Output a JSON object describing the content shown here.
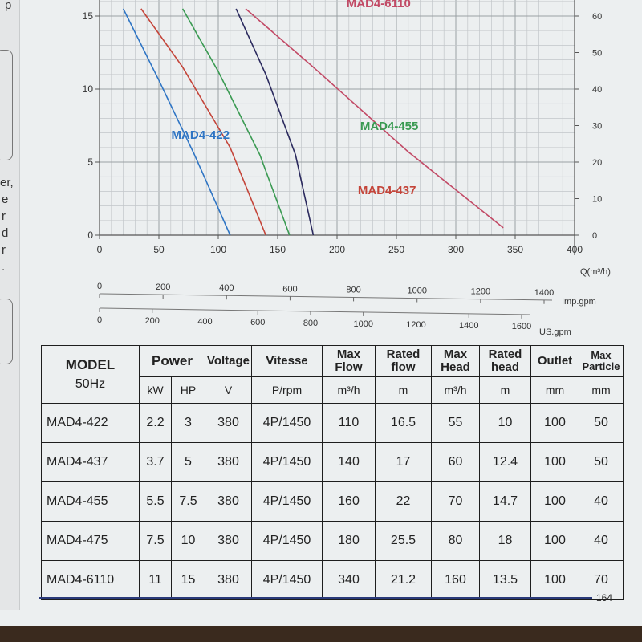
{
  "page": {
    "number": "164"
  },
  "left_page_fragments": [
    "p",
    "er,",
    "e",
    "r",
    "d",
    "r",
    "."
  ],
  "chart_data": {
    "type": "line",
    "title": "",
    "xlabel": "Q(m³/h)",
    "ylabel": "",
    "x_axis": {
      "min": 0,
      "max": 400,
      "ticks": [
        0,
        50,
        100,
        150,
        200,
        250,
        300,
        350,
        400
      ],
      "unit": "Q(m³/h)"
    },
    "y_axis_left": {
      "min": 0,
      "max": 15,
      "ticks": [
        0,
        5,
        10,
        15
      ]
    },
    "y_axis_right": {
      "min": 0,
      "max": 60,
      "ticks": [
        0,
        10,
        20,
        30,
        40,
        50,
        60
      ]
    },
    "secondary_x_axes": [
      {
        "unit": "Imp.gpm",
        "min": 0,
        "max": 1400,
        "ticks": [
          0,
          200,
          400,
          600,
          800,
          1000,
          1200,
          1400
        ]
      },
      {
        "unit": "US.gpm",
        "min": 0,
        "max": 1600,
        "ticks": [
          0,
          200,
          400,
          600,
          800,
          1000,
          1200,
          1400,
          1600
        ]
      }
    ],
    "grid": true,
    "series": [
      {
        "name": "MAD4-422",
        "color": "#2f75c4",
        "label_x": 85,
        "label_y": 6.6,
        "x": [
          20,
          50,
          80,
          110
        ],
        "y": [
          15.5,
          10.6,
          5.5,
          0
        ]
      },
      {
        "name": "MAD4-437",
        "color": "#c4453a",
        "label_x": 242,
        "label_y": 2.8,
        "x": [
          35,
          70,
          110,
          140
        ],
        "y": [
          15.5,
          11.5,
          6.0,
          0
        ]
      },
      {
        "name": "MAD4-455",
        "color": "#3a9a52",
        "label_x": 244,
        "label_y": 7.2,
        "x": [
          70,
          100,
          135,
          160
        ],
        "y": [
          15.5,
          11.2,
          5.5,
          0
        ]
      },
      {
        "name": "MAD4-475",
        "color": "#2b2a5e",
        "label_x": 0,
        "label_y": 0,
        "x": [
          115,
          140,
          165,
          180
        ],
        "y": [
          15.5,
          11.0,
          5.5,
          0
        ]
      },
      {
        "name": "MAD4-6110",
        "color": "#c24a66",
        "label_x": 235,
        "label_y": 15.6,
        "x": [
          123,
          180,
          260,
          340
        ],
        "y": [
          15.5,
          11.5,
          5.7,
          0.5
        ]
      }
    ]
  },
  "table": {
    "headers": {
      "model": "MODEL",
      "model_sub": "50Hz",
      "power": "Power",
      "kw": "kW",
      "hp": "HP",
      "voltage": "Voltage",
      "voltage_unit": "V",
      "vitesse": "Vitesse",
      "vitesse_unit": "P/rpm",
      "max_flow": "Max Flow",
      "max_flow_unit": "m³/h",
      "rated_flow": "Rated flow",
      "rated_flow_unit": "m",
      "max_head": "Max Head",
      "max_head_unit": "m³/h",
      "rated_head": "Rated head",
      "rated_head_unit": "m",
      "outlet": "Outlet",
      "outlet_unit": "mm",
      "max_particle": "Max Particle",
      "max_particle_unit": "mm"
    },
    "rows": [
      {
        "model": "MAD4-422",
        "kw": "2.2",
        "hp": "3",
        "v": "380",
        "rpm": "4P/1450",
        "max_flow": "110",
        "rated_flow": "16.5",
        "max_head": "55",
        "rated_head": "10",
        "outlet": "100",
        "particle": "50"
      },
      {
        "model": "MAD4-437",
        "kw": "3.7",
        "hp": "5",
        "v": "380",
        "rpm": "4P/1450",
        "max_flow": "140",
        "rated_flow": "17",
        "max_head": "60",
        "rated_head": "12.4",
        "outlet": "100",
        "particle": "50"
      },
      {
        "model": "MAD4-455",
        "kw": "5.5",
        "hp": "7.5",
        "v": "380",
        "rpm": "4P/1450",
        "max_flow": "160",
        "rated_flow": "22",
        "max_head": "70",
        "rated_head": "14.7",
        "outlet": "100",
        "particle": "40"
      },
      {
        "model": "MAD4-475",
        "kw": "7.5",
        "hp": "10",
        "v": "380",
        "rpm": "4P/1450",
        "max_flow": "180",
        "rated_flow": "25.5",
        "max_head": "80",
        "rated_head": "18",
        "outlet": "100",
        "particle": "40"
      },
      {
        "model": "MAD4-6110",
        "kw": "11",
        "hp": "15",
        "v": "380",
        "rpm": "4P/1450",
        "max_flow": "340",
        "rated_flow": "21.2",
        "max_head": "160",
        "rated_head": "13.5",
        "outlet": "100",
        "particle": "70"
      }
    ]
  }
}
